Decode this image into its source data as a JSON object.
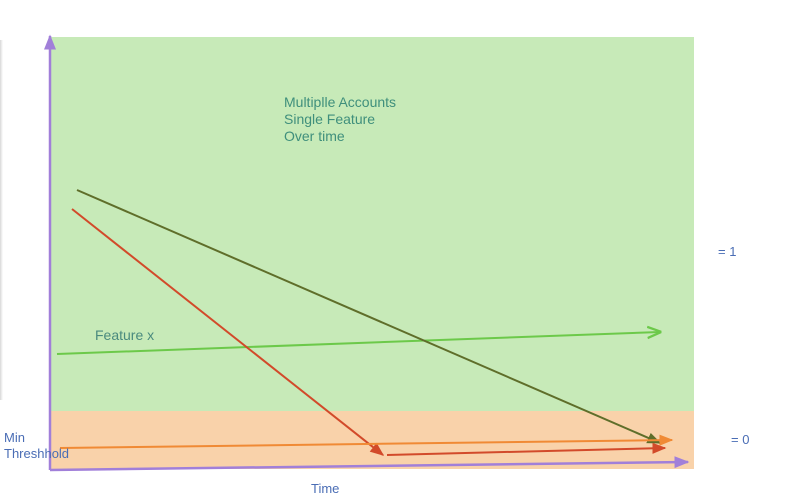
{
  "title": {
    "line1": "Multiplle Accounts",
    "line2": "Single Feature",
    "line3": "Over time"
  },
  "feature_label": "Feature x",
  "levels": {
    "high": "= 1",
    "low": "= 0"
  },
  "threshold": {
    "line1": "Min",
    "line2": "Threshhold"
  },
  "x_axis_label": "Time",
  "colors": {
    "high_zone": "#c7eab8",
    "low_zone": "#f9d2aa",
    "axis": "#a17fd9",
    "feature_line": "#6cc94a",
    "olive_line": "#5f6e2a",
    "red_line": "#d24a2a",
    "orange_line": "#f08a35"
  }
}
